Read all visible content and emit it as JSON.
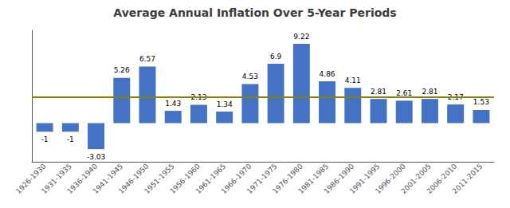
{
  "chart_data": {
    "type": "bar",
    "title": "Average Annual Inflation Over 5-Year Periods",
    "categories": [
      "1926-1930",
      "1931-1935",
      "1936-1940",
      "1941-1945",
      "1946-1950",
      "1951-1955",
      "1956-1960",
      "1961-1965",
      "1966-1970",
      "1971-1975",
      "1976-1980",
      "1981-1985",
      "1986-1990",
      "1991-1995",
      "1996-2000",
      "2001-2005",
      "2006-2010",
      "2011-2015"
    ],
    "values": [
      -1.0,
      -1.0,
      -3.03,
      5.26,
      6.57,
      1.43,
      2.13,
      1.34,
      4.53,
      6.9,
      9.22,
      4.86,
      4.11,
      2.81,
      2.61,
      2.81,
      2.17,
      1.53
    ],
    "color": "#4472C4",
    "ylim": [
      -4.5,
      10.8
    ],
    "reference_line": {
      "value": 3.0,
      "color": "#8B8000"
    },
    "data_labels": true,
    "tick_labels": "x",
    "grid": false
  }
}
